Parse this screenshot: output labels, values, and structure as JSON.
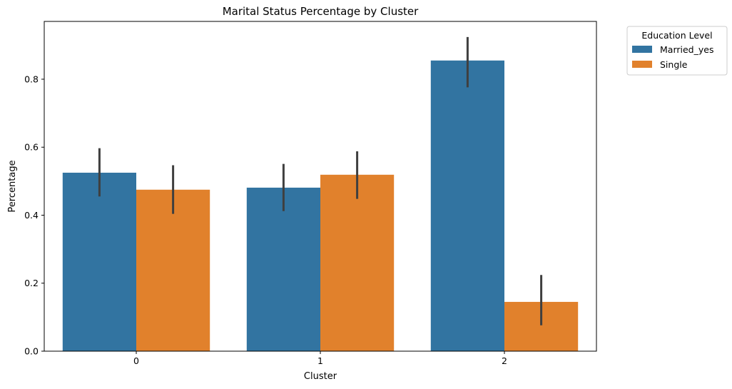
{
  "chart_data": {
    "type": "bar",
    "title": "Marital Status Percentage by Cluster",
    "xlabel": "Cluster",
    "ylabel": "Percentage",
    "categories": [
      "0",
      "1",
      "2"
    ],
    "ylim": [
      0,
      0.97
    ],
    "yticks": [
      0.0,
      0.2,
      0.4,
      0.6,
      0.8
    ],
    "ytick_labels": [
      "0.0",
      "0.2",
      "0.4",
      "0.6",
      "0.8"
    ],
    "grid": false,
    "legend": {
      "title": "Education Level",
      "placement": "outside-top-right"
    },
    "series": [
      {
        "name": "Married_yes",
        "color": "#3274a1",
        "values": [
          0.525,
          0.481,
          0.855
        ],
        "error_low": [
          0.455,
          0.412,
          0.776
        ],
        "error_high": [
          0.597,
          0.551,
          0.924
        ]
      },
      {
        "name": "Single",
        "color": "#e1812c",
        "values": [
          0.475,
          0.519,
          0.145
        ],
        "error_low": [
          0.404,
          0.448,
          0.076
        ],
        "error_high": [
          0.547,
          0.588,
          0.224
        ]
      }
    ],
    "errorbar_color": "#3f3f3f"
  }
}
